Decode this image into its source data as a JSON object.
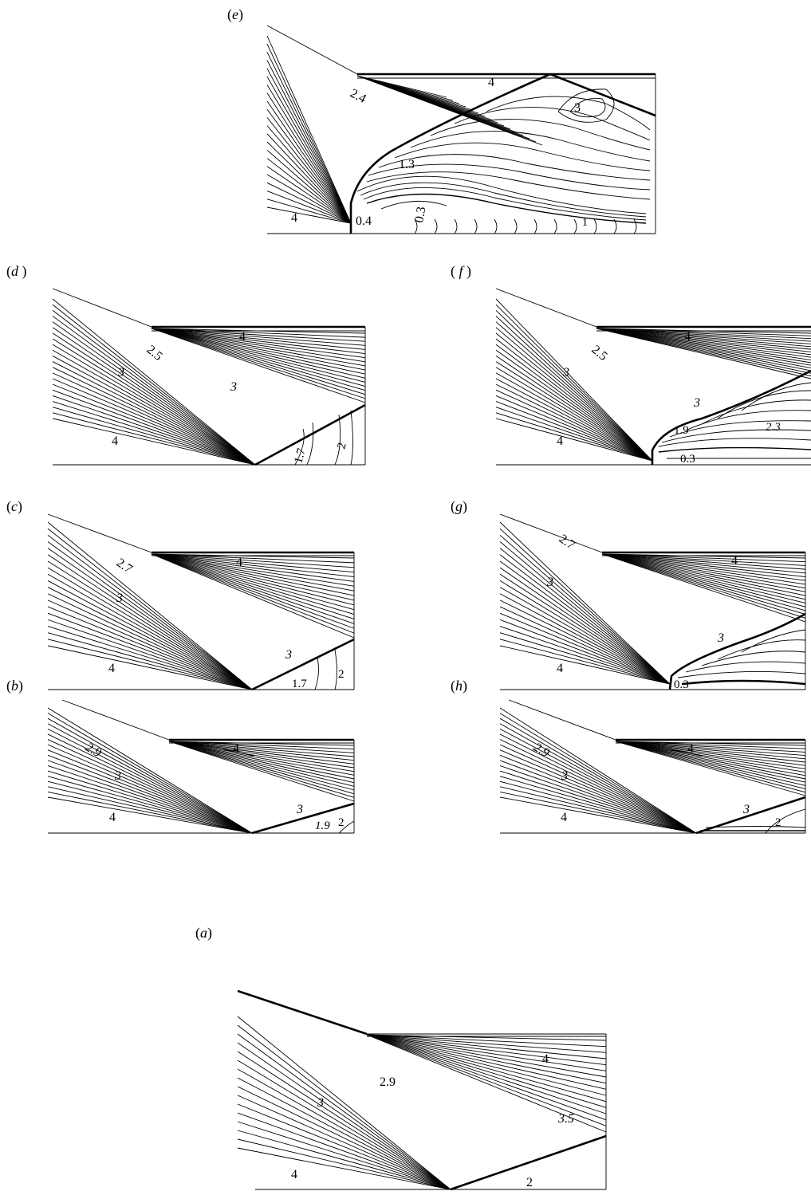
{
  "panels": [
    {
      "id": "e",
      "prefix": "(",
      "letter": "e",
      "suffix": ")",
      "labels": [
        "2.4",
        "4",
        "3",
        "1.3",
        "4",
        "0.4",
        "0.3",
        "1"
      ]
    },
    {
      "id": "d",
      "prefix": "(",
      "letter": "d",
      "suffix": " )",
      "labels": [
        "4",
        "2.5",
        "3",
        "3",
        "4",
        "1.7",
        "2"
      ]
    },
    {
      "id": "f",
      "prefix": "( ",
      "letter": "f",
      "suffix": " )",
      "labels": [
        "4",
        "2.5",
        "3",
        "3",
        "1.9",
        "2.3",
        "4",
        "0.3"
      ]
    },
    {
      "id": "c",
      "prefix": "(",
      "letter": "c",
      "suffix": ")",
      "labels": [
        "2.7",
        "4",
        "3",
        "4",
        "3",
        "1.7",
        "2"
      ]
    },
    {
      "id": "g",
      "prefix": "(",
      "letter": "g",
      "suffix": ")",
      "labels": [
        "2.7",
        "4",
        "3",
        "4",
        "3",
        "0.3"
      ]
    },
    {
      "id": "b",
      "prefix": "(",
      "letter": "b",
      "suffix": ")",
      "labels": [
        "2.9",
        "4",
        "3",
        "4",
        "3",
        "1.9",
        "2"
      ]
    },
    {
      "id": "h",
      "prefix": "(",
      "letter": "h",
      "suffix": ")",
      "labels": [
        "2.9",
        "4",
        "3",
        "4",
        "3",
        "2"
      ]
    },
    {
      "id": "a",
      "prefix": "(",
      "letter": "a",
      "suffix": ")",
      "labels": [
        "2.9",
        "4",
        "3",
        "3.5",
        "4",
        "2"
      ]
    }
  ]
}
